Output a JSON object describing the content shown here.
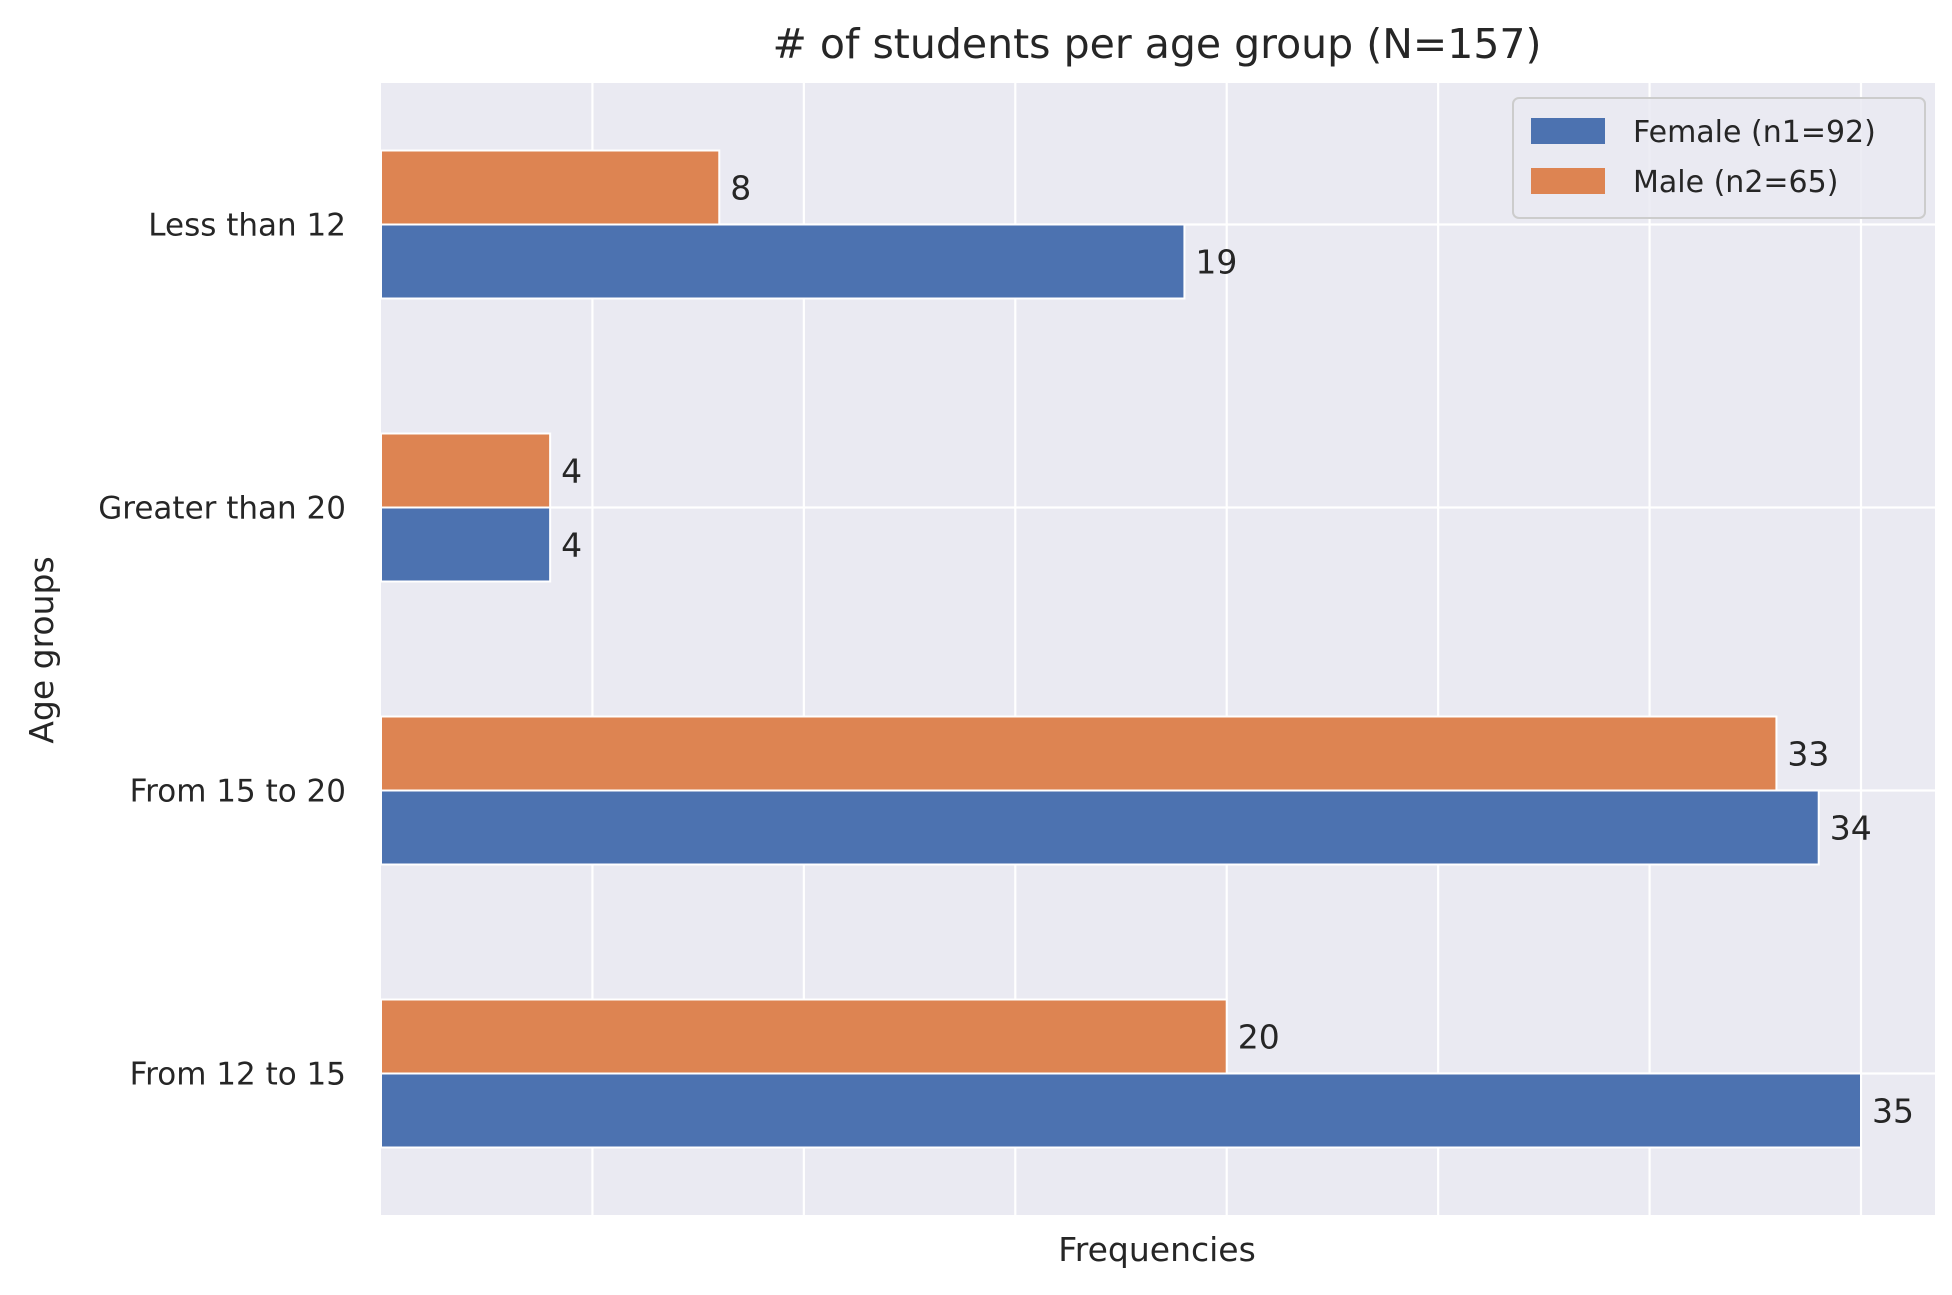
{
  "chart_data": {
    "type": "bar",
    "orientation": "horizontal",
    "title": "# of students per age group (N=157)",
    "xlabel": "Frequencies",
    "ylabel": "Age groups",
    "categories": [
      "Less than 12",
      "Greater than 20",
      "From 15 to 20",
      "From 12 to 15"
    ],
    "series": [
      {
        "name": "Female (n1=92)",
        "values": [
          19,
          4,
          34,
          35
        ],
        "color": "#4c72b0"
      },
      {
        "name": "Male (n2=65)",
        "values": [
          8,
          4,
          33,
          20
        ],
        "color": "#dd8452"
      }
    ],
    "xlim": [
      0,
      36.75
    ],
    "grid": true,
    "x_tick_labels_shown": false,
    "legend_position": "top-right",
    "background_color": "#eaeaf2",
    "grid_color": "#ffffff"
  }
}
